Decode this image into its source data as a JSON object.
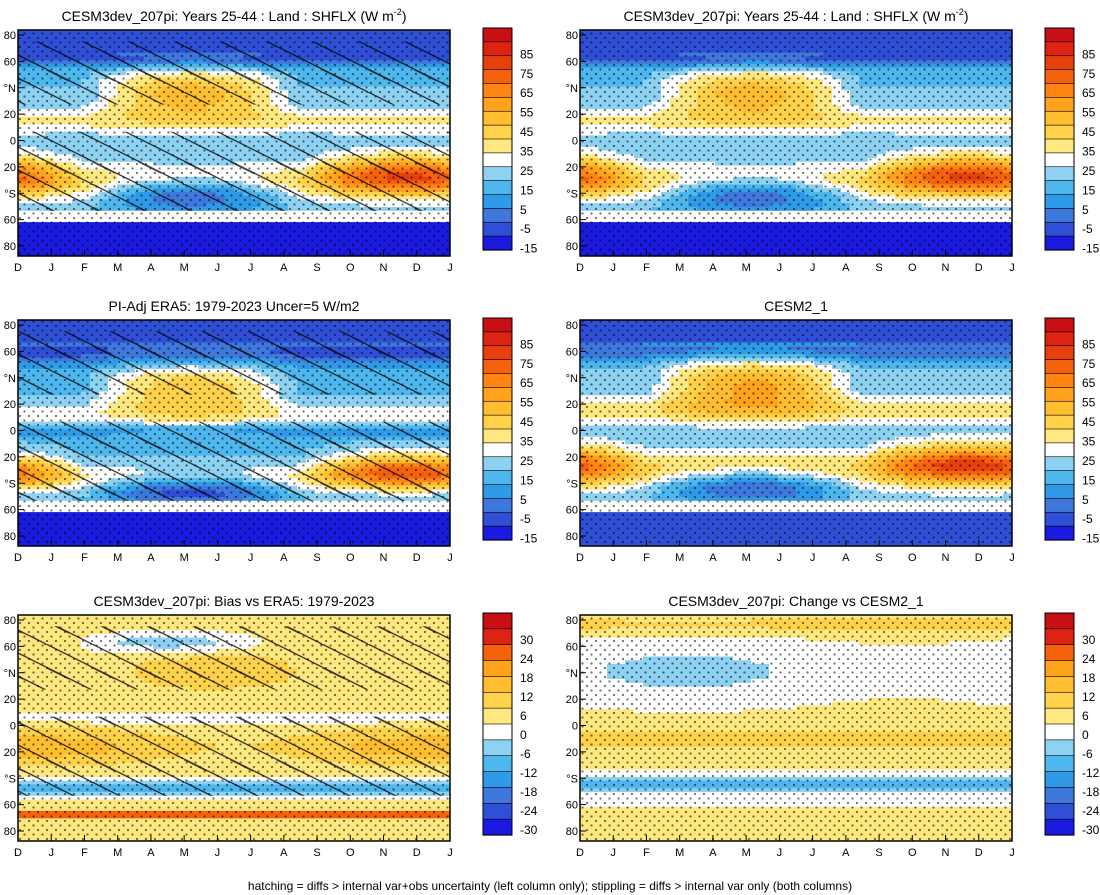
{
  "footer_note": "hatching = diffs > internal var+obs uncertainty (left column only); stippling = diffs > internal var only (both columns)",
  "colors": {
    "palette_abs": [
      "#1a1ae0",
      "#2f4fd6",
      "#3f78dc",
      "#2f9be8",
      "#4db7ee",
      "#8dd2f2",
      "#ffffff",
      "#ffe880",
      "#ffd24a",
      "#ffbe30",
      "#ffa21c",
      "#ff8414",
      "#f5620e",
      "#e8400c",
      "#dd2312",
      "#c80f14"
    ],
    "palette_diff": [
      "#1a1ae0",
      "#2f4fd6",
      "#3f78dc",
      "#2f9be8",
      "#4db7ee",
      "#8dd2f2",
      "#ffffff",
      "#ffe880",
      "#ffd24a",
      "#ffbe30",
      "#ffa21c",
      "#f5620e",
      "#dd2312",
      "#c80f14"
    ]
  },
  "chart_data": [
    {
      "type": "heatmap",
      "title": "CESM3dev_207pi: Years 25-44 : Land : SHFLX (W m",
      "title_superscript": "-2",
      "title_suffix": ")",
      "x_ticks": [
        "D",
        "J",
        "F",
        "M",
        "A",
        "M",
        "J",
        "J",
        "A",
        "S",
        "O",
        "N",
        "D",
        "J"
      ],
      "y_ticks": [
        "80",
        "60",
        "°N",
        "20",
        "0",
        "20",
        "°S",
        "60",
        "80"
      ],
      "ylim": [
        -90,
        90
      ],
      "colorbar_labels": [
        "85",
        "75",
        "65",
        "55",
        "45",
        "35",
        "25",
        "15",
        "5",
        "-5",
        "-15"
      ],
      "colorbar_step": 10,
      "cells": 16,
      "pattern": "abs",
      "hatched": true
    },
    {
      "type": "heatmap",
      "title": "CESM3dev_207pi: Years 25-44 : Land : SHFLX (W m",
      "title_superscript": "-2",
      "title_suffix": ")",
      "x_ticks": [
        "D",
        "J",
        "F",
        "M",
        "A",
        "M",
        "J",
        "J",
        "A",
        "S",
        "O",
        "N",
        "D",
        "J"
      ],
      "y_ticks": [
        "80",
        "60",
        "°N",
        "20",
        "0",
        "20",
        "°S",
        "60",
        "80"
      ],
      "ylim": [
        -90,
        90
      ],
      "colorbar_labels": [
        "85",
        "75",
        "65",
        "55",
        "45",
        "35",
        "25",
        "15",
        "5",
        "-5",
        "-15"
      ],
      "colorbar_step": 10,
      "cells": 16,
      "pattern": "abs",
      "hatched": false
    },
    {
      "type": "heatmap",
      "title": "PI-Adj ERA5: 1979-2023 Uncer=5 W/m2",
      "x_ticks": [
        "D",
        "J",
        "F",
        "M",
        "A",
        "M",
        "J",
        "J",
        "A",
        "S",
        "O",
        "N",
        "D",
        "J"
      ],
      "y_ticks": [
        "80",
        "60",
        "°N",
        "20",
        "0",
        "20",
        "°S",
        "60",
        "80"
      ],
      "ylim": [
        -90,
        90
      ],
      "colorbar_labels": [
        "85",
        "75",
        "65",
        "55",
        "45",
        "35",
        "25",
        "15",
        "5",
        "-5",
        "-15"
      ],
      "colorbar_step": 10,
      "cells": 16,
      "pattern": "abs2",
      "hatched": true
    },
    {
      "type": "heatmap",
      "title": "CESM2_1",
      "x_ticks": [
        "D",
        "J",
        "F",
        "M",
        "A",
        "M",
        "J",
        "J",
        "A",
        "S",
        "O",
        "N",
        "D",
        "J"
      ],
      "y_ticks": [
        "80",
        "60",
        "°N",
        "20",
        "0",
        "20",
        "°S",
        "60",
        "80"
      ],
      "ylim": [
        -90,
        90
      ],
      "colorbar_labels": [
        "85",
        "75",
        "65",
        "55",
        "45",
        "35",
        "25",
        "15",
        "5",
        "-5",
        "-15"
      ],
      "colorbar_step": 10,
      "cells": 16,
      "pattern": "abs3",
      "hatched": false
    },
    {
      "type": "heatmap",
      "title": "CESM3dev_207pi: Bias vs ERA5: 1979-2023",
      "x_ticks": [
        "D",
        "J",
        "F",
        "M",
        "A",
        "M",
        "J",
        "J",
        "A",
        "S",
        "O",
        "N",
        "D",
        "J"
      ],
      "y_ticks": [
        "80",
        "60",
        "°N",
        "20",
        "0",
        "20",
        "°S",
        "60",
        "80"
      ],
      "ylim": [
        -90,
        90
      ],
      "colorbar_labels": [
        "30",
        "24",
        "18",
        "12",
        "6",
        "0",
        "-6",
        "-12",
        "-18",
        "-24",
        "-30"
      ],
      "colorbar_step": 6,
      "cells": 14,
      "pattern": "bias",
      "hatched": true
    },
    {
      "type": "heatmap",
      "title": "CESM3dev_207pi: Change vs CESM2_1",
      "x_ticks": [
        "D",
        "J",
        "F",
        "M",
        "A",
        "M",
        "J",
        "J",
        "A",
        "S",
        "O",
        "N",
        "D",
        "J"
      ],
      "y_ticks": [
        "80",
        "60",
        "°N",
        "20",
        "0",
        "20",
        "°S",
        "60",
        "80"
      ],
      "ylim": [
        -90,
        90
      ],
      "colorbar_labels": [
        "30",
        "24",
        "18",
        "12",
        "6",
        "0",
        "-6",
        "-12",
        "-18",
        "-24",
        "-30"
      ],
      "colorbar_step": 6,
      "cells": 14,
      "pattern": "change",
      "hatched": false
    }
  ]
}
